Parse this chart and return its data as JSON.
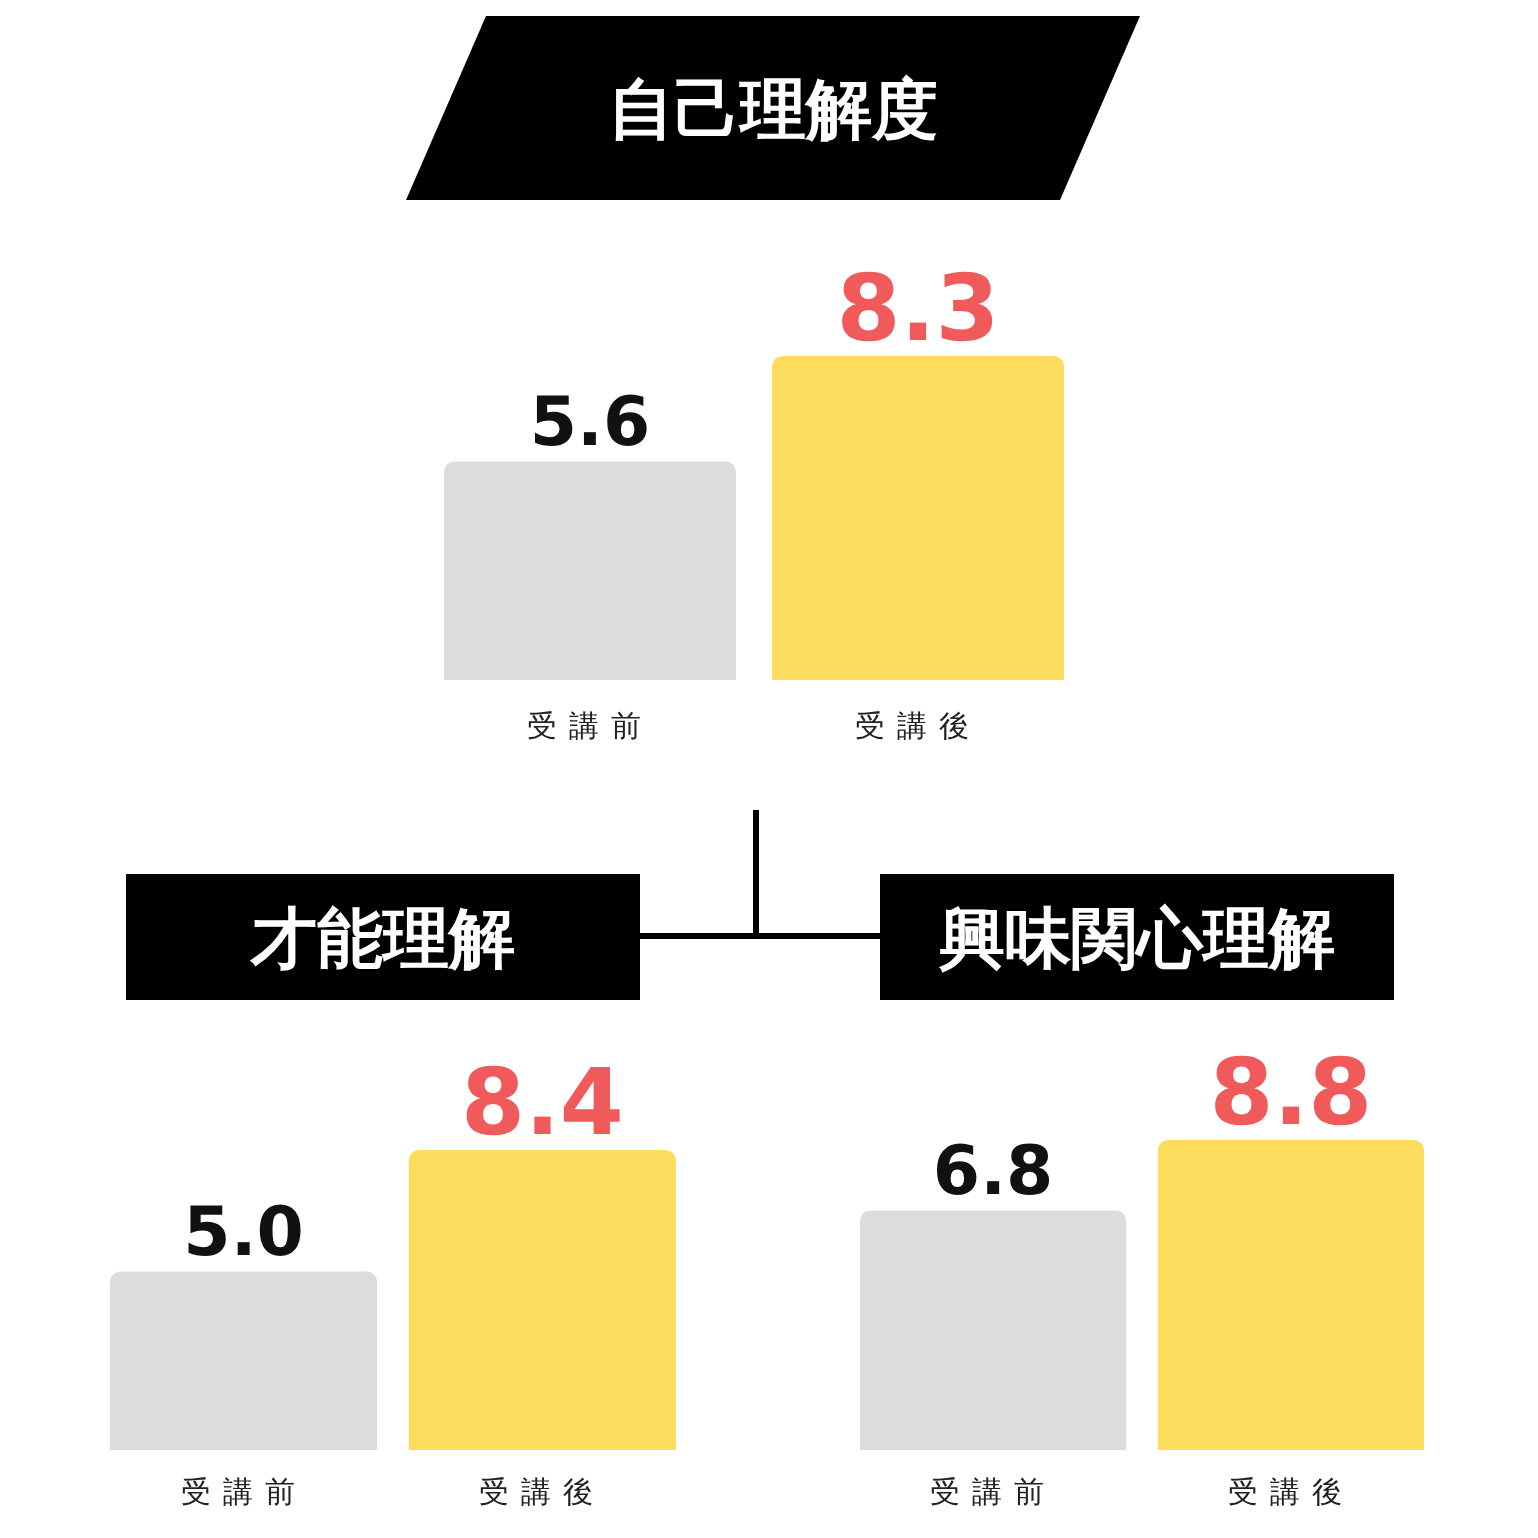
{
  "chart_data": [
    {
      "type": "bar",
      "title": "自己理解度",
      "categories": [
        "受講前",
        "受講後"
      ],
      "values": [
        5.6,
        8.3
      ],
      "value_labels": [
        "5.6",
        "8.3"
      ],
      "colors": [
        "#dcdcdc",
        "#fcdc5c"
      ]
    },
    {
      "type": "bar",
      "title": "才能理解",
      "categories": [
        "受講前",
        "受講後"
      ],
      "values": [
        5.0,
        8.4
      ],
      "value_labels": [
        "5.0",
        "8.4"
      ],
      "colors": [
        "#dcdcdc",
        "#fcdc5c"
      ]
    },
    {
      "type": "bar",
      "title": "興味関心理解",
      "categories": [
        "受講前",
        "受講後"
      ],
      "values": [
        6.8,
        8.8
      ],
      "value_labels": [
        "6.8",
        "8.8"
      ],
      "colors": [
        "#dcdcdc",
        "#fcdc5c"
      ]
    }
  ]
}
